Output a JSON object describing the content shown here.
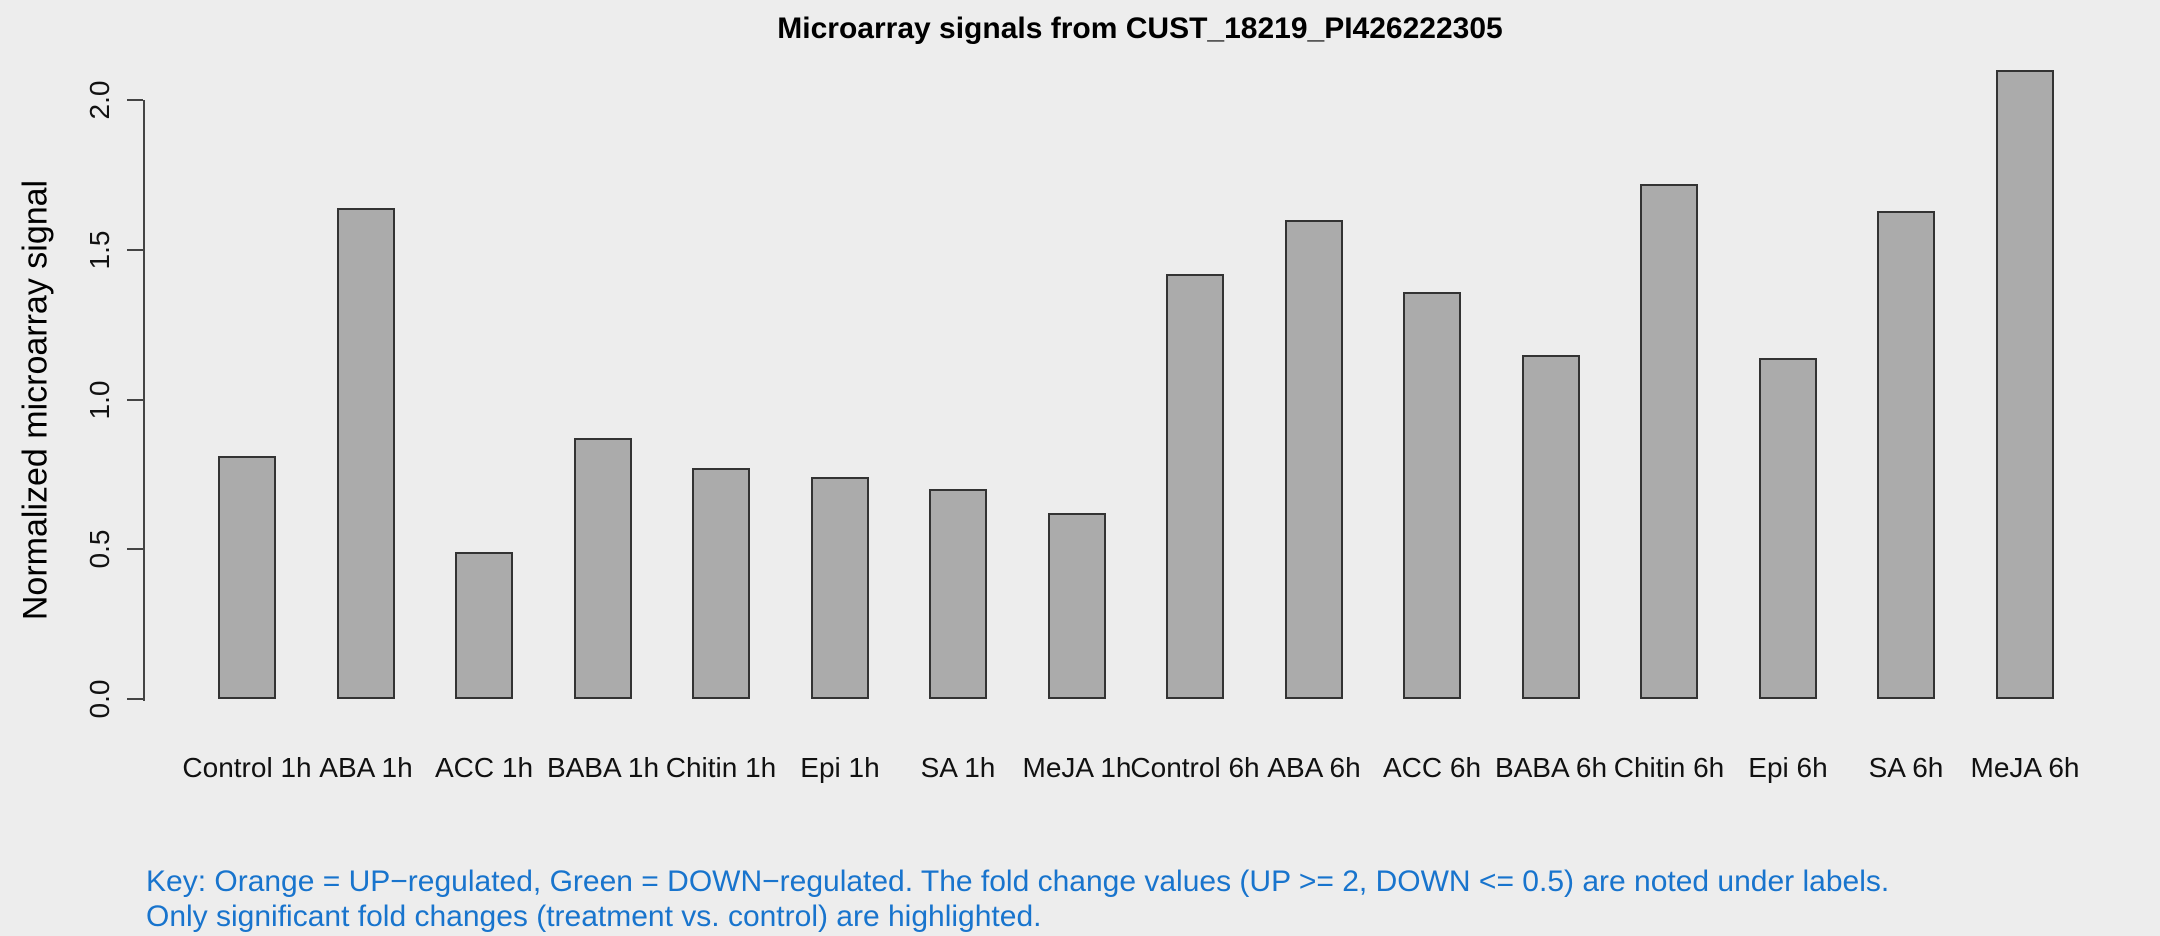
{
  "title": "Microarray signals from CUST_18219_PI426222305",
  "chart_data": {
    "type": "bar",
    "title": "Microarray signals from CUST_18219_PI426222305",
    "xlabel": "",
    "ylabel": "Normalized microarray signal",
    "ylim": [
      0,
      2.0
    ],
    "yticks": [
      "0.0",
      "0.5",
      "1.0",
      "1.5",
      "2.0"
    ],
    "grid": false,
    "legend": false,
    "categories": [
      "Control 1h",
      "ABA 1h",
      "ACC 1h",
      "BABA 1h",
      "Chitin 1h",
      "Epi 1h",
      "SA 1h",
      "MeJA 1h",
      "Control 6h",
      "ABA 6h",
      "ACC 6h",
      "BABA 6h",
      "Chitin 6h",
      "Epi 6h",
      "SA 6h",
      "MeJA 6h"
    ],
    "values": [
      0.81,
      1.64,
      0.49,
      0.87,
      0.77,
      0.74,
      0.7,
      0.62,
      1.42,
      1.6,
      1.36,
      1.15,
      1.72,
      1.14,
      1.63,
      2.1
    ],
    "bar_color": "#ABABAB",
    "bar_border_color": "#333333"
  },
  "key_note": {
    "line1": "Key: Orange = UP−regulated, Green = DOWN−regulated. The fold change values (UP >= 2, DOWN <= 0.5) are noted under labels.",
    "line2": "Only significant fold changes (treatment vs. control) are highlighted.",
    "color": "#1874CD"
  },
  "colors": {
    "background": "#EDEDED",
    "axis": "#444444",
    "text": "#111111"
  }
}
